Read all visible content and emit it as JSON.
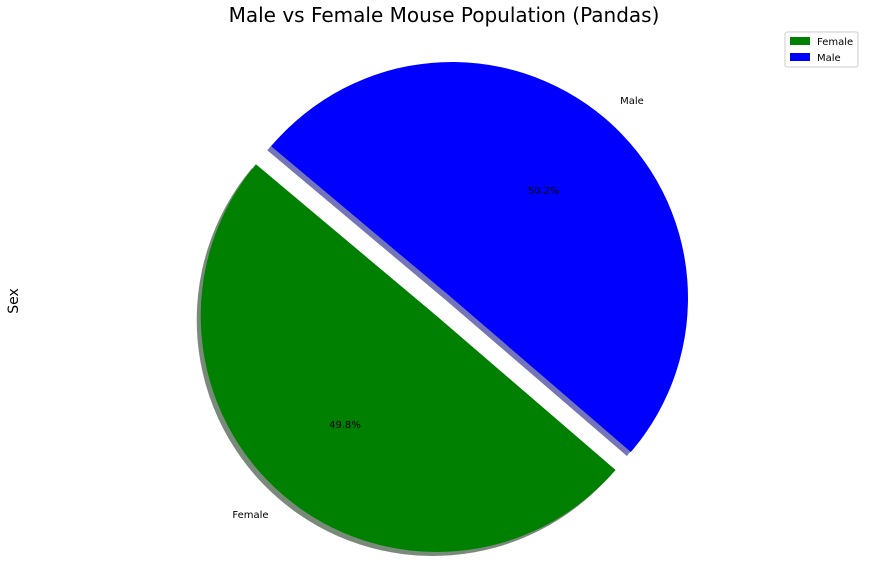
{
  "chart_data": {
    "type": "pie",
    "title": "Male vs Female Mouse Population (Pandas)",
    "ylabel": "Sex",
    "start_angle_deg": 140,
    "shadow": true,
    "explode": [
      0.1,
      0
    ],
    "slices": [
      {
        "label": "Female",
        "value": 49.8,
        "pct_label": "49.8%",
        "color": "#008000",
        "shadow_color": "#7a8a7a"
      },
      {
        "label": "Male",
        "value": 50.2,
        "pct_label": "50.2%",
        "color": "#0000ff",
        "shadow_color": "#7474b8"
      }
    ],
    "legend": {
      "position": "top-right",
      "entries": [
        {
          "label": "Female",
          "color": "#008000"
        },
        {
          "label": "Male",
          "color": "#0000ff"
        }
      ]
    }
  }
}
